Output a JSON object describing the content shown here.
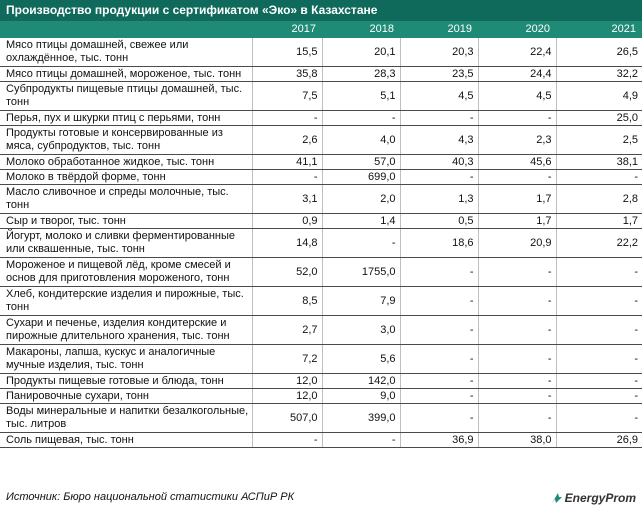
{
  "title": "Производство продукции с сертификатом «Эко» в Казахстане",
  "years": [
    "2017",
    "2018",
    "2019",
    "2020",
    "2021"
  ],
  "rows": [
    {
      "label": "Мясо птицы домашней, свежее или охлаждённое, тыс. тонн",
      "values": [
        "15,5",
        "20,1",
        "20,3",
        "22,4",
        "26,5"
      ],
      "lines": 2
    },
    {
      "label": "Мясо птицы домашней, мороженое, тыс. тонн",
      "values": [
        "35,8",
        "28,3",
        "23,5",
        "24,4",
        "32,2"
      ],
      "lines": 1
    },
    {
      "label": "Субпродукты пищевые птицы домашней, тыс. тонн",
      "values": [
        "7,5",
        "5,1",
        "4,5",
        "4,5",
        "4,9"
      ],
      "lines": 2
    },
    {
      "label": "Перья, пух и шкурки птиц с перьями, тонн",
      "values": [
        "-",
        "-",
        "-",
        "-",
        "25,0"
      ],
      "lines": 1
    },
    {
      "label": "Продукты готовые и консервированные из мяса, субпродуктов, тыс. тонн",
      "values": [
        "2,6",
        "4,0",
        "4,3",
        "2,3",
        "2,5"
      ],
      "lines": 2
    },
    {
      "label": "Молоко обработанное жидкое, тыс. тонн",
      "values": [
        "41,1",
        "57,0",
        "40,3",
        "45,6",
        "38,1"
      ],
      "lines": 1
    },
    {
      "label": "Молоко в твёрдой форме, тонн",
      "values": [
        "-",
        "699,0",
        "-",
        "-",
        "-"
      ],
      "lines": 1
    },
    {
      "label": "Масло сливочное и спреды молочные, тыс. тонн",
      "values": [
        "3,1",
        "2,0",
        "1,3",
        "1,7",
        "2,8"
      ],
      "lines": 2
    },
    {
      "label": "Сыр и творог, тыс. тонн",
      "values": [
        "0,9",
        "1,4",
        "0,5",
        "1,7",
        "1,7"
      ],
      "lines": 1
    },
    {
      "label": "Йогурт, молоко и сливки ферментированные или сквашенные, тыс. тонн",
      "values": [
        "14,8",
        "-",
        "18,6",
        "20,9",
        "22,2"
      ],
      "lines": 2
    },
    {
      "label": "Мороженое и пищевой лёд, кроме смесей и основ для приготовления мороженого, тонн",
      "values": [
        "52,0",
        "1755,0",
        "-",
        "-",
        "-"
      ],
      "lines": 2
    },
    {
      "label": "Хлеб, кондитерские изделия и пирожные, тыс. тонн",
      "values": [
        "8,5",
        "7,9",
        "-",
        "-",
        "-"
      ],
      "lines": 2
    },
    {
      "label": "Сухари и печенье, изделия кондитерские и пирожные длительного хранения, тыс. тонн",
      "values": [
        "2,7",
        "3,0",
        "-",
        "-",
        "-"
      ],
      "lines": 2
    },
    {
      "label": "Макароны, лапша, кускус и аналогичные мучные изделия, тыс. тонн",
      "values": [
        "7,2",
        "5,6",
        "-",
        "-",
        "-"
      ],
      "lines": 2
    },
    {
      "label": "Продукты пищевые готовые и блюда, тонн",
      "values": [
        "12,0",
        "142,0",
        "-",
        "-",
        "-"
      ],
      "lines": 1
    },
    {
      "label": "Панировочные сухари, тонн",
      "values": [
        "12,0",
        "9,0",
        "-",
        "-",
        "-"
      ],
      "lines": 1
    },
    {
      "label": "Воды минеральные и напитки безалкогольные, тыс. литров",
      "values": [
        "507,0",
        "399,0",
        "-",
        "-",
        "-"
      ],
      "lines": 2
    },
    {
      "label": "Соль пищевая, тыс. тонн",
      "values": [
        "-",
        "-",
        "36,9",
        "38,0",
        "26,9"
      ],
      "lines": 1
    }
  ],
  "source": "Источник: Бюро национальной статистики АСПиР РК",
  "logo": {
    "text": "EnergyProm",
    "icon": "energyprom-logo-icon"
  },
  "colors": {
    "title_bg": "#0f6a5c",
    "header_bg": "#1f8a75"
  }
}
